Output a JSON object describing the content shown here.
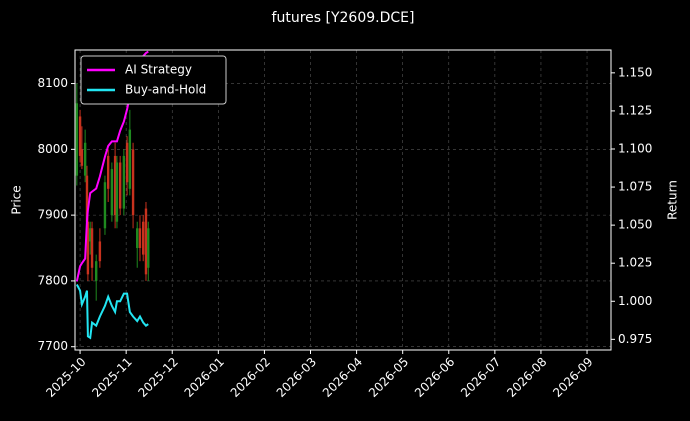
{
  "chart_data": {
    "type": "candlestick",
    "title": "futures [Y2609.DCE]",
    "ylabel": "Price",
    "y2label": "Return",
    "x": [
      -0.07,
      0,
      0.04,
      0.11,
      0.15,
      0.17,
      0.22,
      0.26,
      0.35,
      0.43,
      0.54,
      0.61,
      0.69,
      0.76,
      0.8,
      0.87,
      0.95,
      1.02,
      1.08,
      1.15,
      1.24,
      1.3,
      1.37,
      1.43,
      1.48
    ],
    "open": [
      7960,
      8050,
      8000,
      7960,
      7960,
      7890,
      7860,
      7880,
      7800,
      7860,
      7880,
      7990,
      7900,
      7990,
      7890,
      7980,
      7910,
      8010,
      7940,
      8000,
      7850,
      7880,
      7890,
      7910,
      7820
    ],
    "high": [
      8100,
      8060,
      8035,
      8030,
      7975,
      7900,
      7890,
      7890,
      7840,
      7880,
      7960,
      8000,
      7980,
      8010,
      7990,
      7990,
      8000,
      8020,
      8060,
      8010,
      7890,
      7900,
      7900,
      7920,
      7890
    ],
    "low": [
      7945,
      7980,
      7970,
      7950,
      7880,
      7800,
      7840,
      7800,
      7770,
      7820,
      7870,
      7920,
      7890,
      7880,
      7880,
      7900,
      7900,
      7930,
      7930,
      7880,
      7820,
      7830,
      7830,
      7800,
      7800
    ],
    "close": [
      8070,
      7990,
      7975,
      8010,
      7890,
      7810,
      7880,
      7820,
      7830,
      7830,
      7950,
      7940,
      7970,
      7900,
      7980,
      7910,
      7990,
      7950,
      8030,
      7900,
      7880,
      7850,
      7840,
      7810,
      7880
    ],
    "up_color": "#1f8a1f",
    "down_color": "#c8321e",
    "series": [
      {
        "name": "AI Strategy",
        "color": "#ff00ff",
        "type": "line",
        "axis": "y2",
        "values": [
          1.013,
          1.023,
          1.025,
          1.028,
          1.053,
          1.06,
          1.071,
          1.072,
          1.074,
          1.082,
          1.095,
          1.102,
          1.105,
          1.105,
          1.105,
          1.112,
          1.118,
          1.126,
          1.135,
          1.145,
          1.151,
          1.158,
          1.161,
          1.163,
          1.164
        ]
      },
      {
        "name": "Buy-and-Hold",
        "color": "#22e5f2",
        "type": "line",
        "axis": "y2",
        "values": [
          1.011,
          1.007,
          0.998,
          1.003,
          1.007,
          0.977,
          0.976,
          0.986,
          0.984,
          0.99,
          0.997,
          1.003,
          0.997,
          0.993,
          1.0,
          1.0,
          1.005,
          1.005,
          0.993,
          0.99,
          0.987,
          0.99,
          0.986,
          0.984,
          0.985
        ]
      }
    ],
    "xlim": [
      -0.11,
      11.52
    ],
    "xticks": [
      {
        "value": 0,
        "label": "2025-10"
      },
      {
        "value": 1,
        "label": "2025-11"
      },
      {
        "value": 2,
        "label": "2025-12"
      },
      {
        "value": 3,
        "label": "2026-01"
      },
      {
        "value": 4,
        "label": "2026-02"
      },
      {
        "value": 5,
        "label": "2026-03"
      },
      {
        "value": 6,
        "label": "2026-04"
      },
      {
        "value": 7,
        "label": "2026-05"
      },
      {
        "value": 8,
        "label": "2026-06"
      },
      {
        "value": 9,
        "label": "2026-07"
      },
      {
        "value": 10,
        "label": "2026-08"
      },
      {
        "value": 11,
        "label": "2026-09"
      }
    ],
    "ylim": [
      7695,
      8151
    ],
    "yticks": [
      7700,
      7800,
      7900,
      8000,
      8100
    ],
    "y2lim": [
      0.968,
      1.165
    ],
    "y2ticks": [
      0.975,
      {
        "value": 1,
        "label": "1.000"
      },
      1.025,
      {
        "value": 1.05,
        "label": "1.050"
      },
      1.075,
      {
        "value": 1.1,
        "label": "1.100"
      },
      1.125,
      {
        "value": 1.15,
        "label": "1.150"
      }
    ],
    "grid": true,
    "legend": "upper left"
  }
}
